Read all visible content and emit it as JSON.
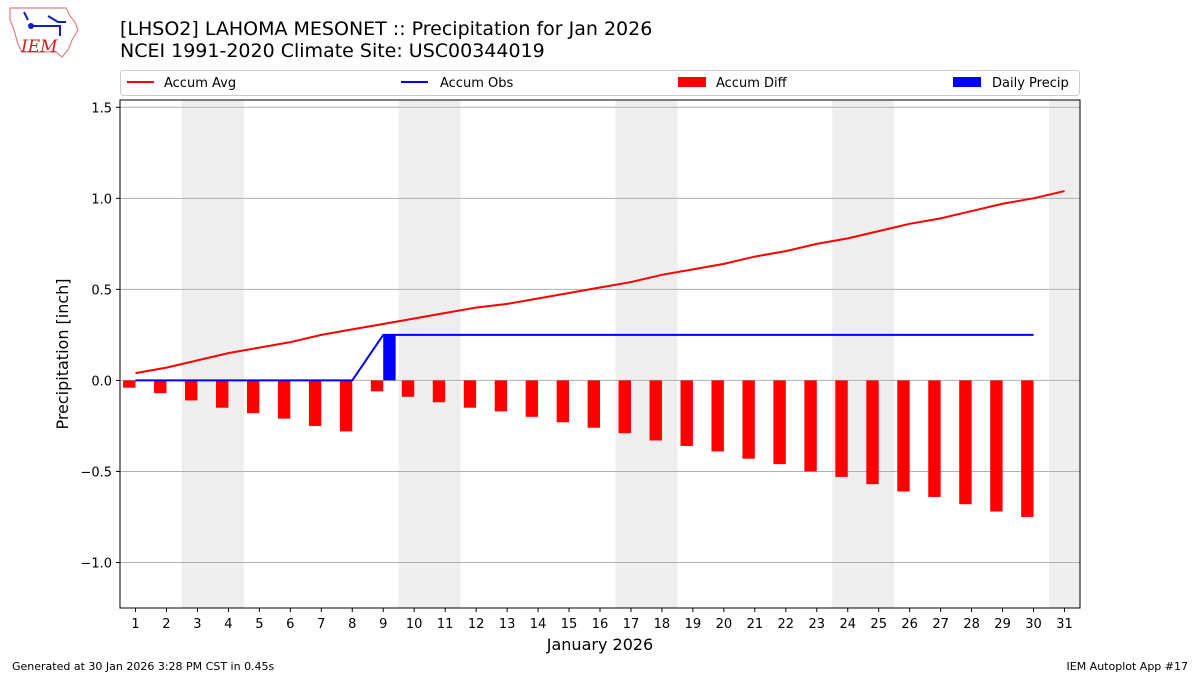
{
  "header": {
    "title": "[LHSO2] LAHOMA MESONET :: Precipitation for Jan 2026",
    "subtitle": "NCEI 1991-2020 Climate Site: USC00344019",
    "logo_text": "IEM"
  },
  "footer": {
    "left": "Generated at 30 Jan 2026 3:28 PM CST in 0.45s",
    "right": "IEM Autoplot App #17"
  },
  "chart_data": {
    "type": "bar",
    "xlabel": "January 2026",
    "ylabel": "Precipitation [inch]",
    "xlim": [
      0.5,
      31.5
    ],
    "ylim": [
      -1.25,
      1.54
    ],
    "yticks": [
      -1.0,
      -0.5,
      0.0,
      0.5,
      1.0,
      1.5
    ],
    "ytick_labels": [
      "−1.0",
      "−0.5",
      "0.0",
      "0.5",
      "1.0",
      "1.5"
    ],
    "xticks": [
      1,
      2,
      3,
      4,
      5,
      6,
      7,
      8,
      9,
      10,
      11,
      12,
      13,
      14,
      15,
      16,
      17,
      18,
      19,
      20,
      21,
      22,
      23,
      24,
      25,
      26,
      27,
      28,
      29,
      30,
      31
    ],
    "grid": "horizontal",
    "legend_placement": "top, above plot",
    "weekend_shading": [
      [
        2.5,
        4.5
      ],
      [
        9.5,
        11.5
      ],
      [
        16.5,
        18.5
      ],
      [
        23.5,
        25.5
      ],
      [
        30.5,
        31.5
      ]
    ],
    "weekend_color": "#eeeeee",
    "series": [
      {
        "name": "Accum Avg",
        "type": "line",
        "color": "#ff0000",
        "x": [
          1,
          2,
          3,
          4,
          5,
          6,
          7,
          8,
          9,
          10,
          11,
          12,
          13,
          14,
          15,
          16,
          17,
          18,
          19,
          20,
          21,
          22,
          23,
          24,
          25,
          26,
          27,
          28,
          29,
          30,
          31
        ],
        "values": [
          0.04,
          0.07,
          0.11,
          0.15,
          0.18,
          0.21,
          0.25,
          0.28,
          0.31,
          0.34,
          0.37,
          0.4,
          0.42,
          0.45,
          0.48,
          0.51,
          0.54,
          0.58,
          0.61,
          0.64,
          0.68,
          0.71,
          0.75,
          0.78,
          0.82,
          0.86,
          0.89,
          0.93,
          0.97,
          1.0,
          1.04
        ]
      },
      {
        "name": "Accum Obs",
        "type": "line",
        "color": "#0000ff",
        "x": [
          1,
          2,
          3,
          4,
          5,
          6,
          7,
          8,
          9,
          10,
          11,
          12,
          13,
          14,
          15,
          16,
          17,
          18,
          19,
          20,
          21,
          22,
          23,
          24,
          25,
          26,
          27,
          28,
          29,
          30
        ],
        "values": [
          0,
          0,
          0,
          0,
          0,
          0,
          0,
          0,
          0.25,
          0.25,
          0.25,
          0.25,
          0.25,
          0.25,
          0.25,
          0.25,
          0.25,
          0.25,
          0.25,
          0.25,
          0.25,
          0.25,
          0.25,
          0.25,
          0.25,
          0.25,
          0.25,
          0.25,
          0.25,
          0.25
        ]
      },
      {
        "name": "Accum Diff",
        "type": "bar",
        "color": "#ff0000",
        "x": [
          1,
          2,
          3,
          4,
          5,
          6,
          7,
          8,
          9,
          10,
          11,
          12,
          13,
          14,
          15,
          16,
          17,
          18,
          19,
          20,
          21,
          22,
          23,
          24,
          25,
          26,
          27,
          28,
          29,
          30
        ],
        "values": [
          -0.04,
          -0.07,
          -0.11,
          -0.15,
          -0.18,
          -0.21,
          -0.25,
          -0.28,
          -0.06,
          -0.09,
          -0.12,
          -0.15,
          -0.17,
          -0.2,
          -0.23,
          -0.26,
          -0.29,
          -0.33,
          -0.36,
          -0.39,
          -0.43,
          -0.46,
          -0.5,
          -0.53,
          -0.57,
          -0.61,
          -0.64,
          -0.68,
          -0.72,
          -0.75
        ]
      },
      {
        "name": "Daily Precip",
        "type": "bar",
        "color": "#0000ff",
        "x": [
          9
        ],
        "values": [
          0.25
        ]
      }
    ]
  }
}
